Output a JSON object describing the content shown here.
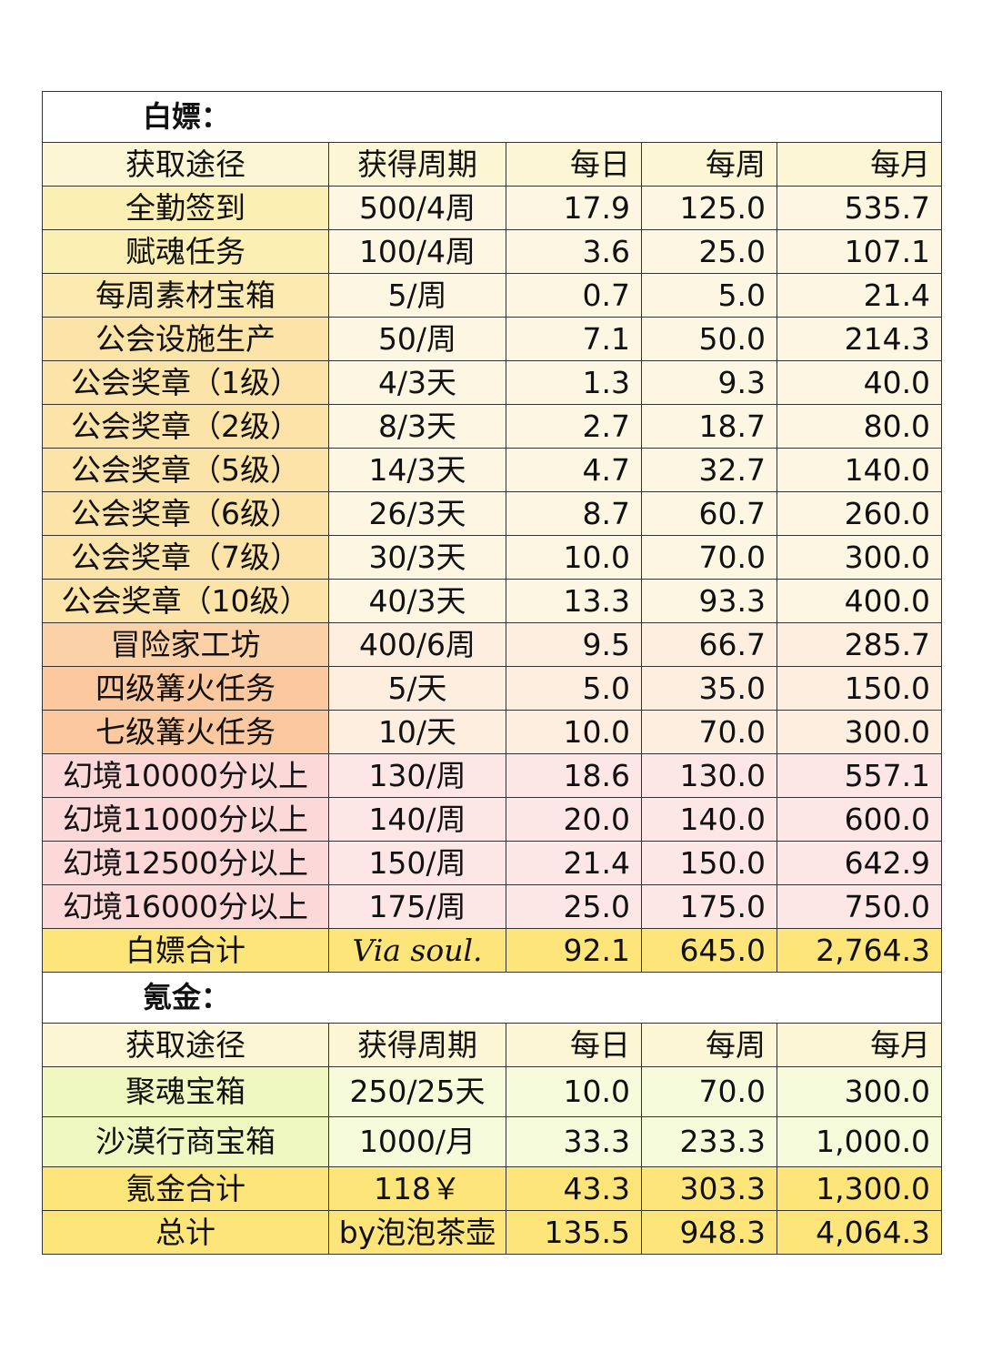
{
  "free": {
    "title": "白嫖：",
    "header": [
      "获取途径",
      "获得周期",
      "每日",
      "每周",
      "每月"
    ],
    "rows": [
      {
        "source": "全勤签到",
        "cycle": "500/4周",
        "daily": "17.9",
        "weekly": "125.0",
        "monthly": "535.7",
        "bg": "#fcefb4"
      },
      {
        "source": "赋魂任务",
        "cycle": "100/4周",
        "daily": "3.6",
        "weekly": "25.0",
        "monthly": "107.1",
        "bg": "#fcefb4"
      },
      {
        "source": "每周素材宝箱",
        "cycle": "5/周",
        "daily": "0.7",
        "weekly": "5.0",
        "monthly": "21.4",
        "bg": "#fceab0"
      },
      {
        "source": "公会设施生产",
        "cycle": "50/周",
        "daily": "7.1",
        "weekly": "50.0",
        "monthly": "214.3",
        "bg": "#fce4a8"
      },
      {
        "source": "公会奖章（1级）",
        "cycle": "4/3天",
        "daily": "1.3",
        "weekly": "9.3",
        "monthly": "40.0",
        "bg": "#fce4a8"
      },
      {
        "source": "公会奖章（2级）",
        "cycle": "8/3天",
        "daily": "2.7",
        "weekly": "18.7",
        "monthly": "80.0",
        "bg": "#fce4a8"
      },
      {
        "source": "公会奖章（5级）",
        "cycle": "14/3天",
        "daily": "4.7",
        "weekly": "32.7",
        "monthly": "140.0",
        "bg": "#fce4a8"
      },
      {
        "source": "公会奖章（6级）",
        "cycle": "26/3天",
        "daily": "8.7",
        "weekly": "60.7",
        "monthly": "260.0",
        "bg": "#fce4a8"
      },
      {
        "source": "公会奖章（7级）",
        "cycle": "30/3天",
        "daily": "10.0",
        "weekly": "70.0",
        "monthly": "300.0",
        "bg": "#fce4a8"
      },
      {
        "source": "公会奖章（10级）",
        "cycle": "40/3天",
        "daily": "13.3",
        "weekly": "93.3",
        "monthly": "400.0",
        "bg": "#fce4a8"
      },
      {
        "source": "冒险家工坊",
        "cycle": "400/6周",
        "daily": "9.5",
        "weekly": "66.7",
        "monthly": "285.7",
        "bg": "#fbd1a8"
      },
      {
        "source": "四级篝火任务",
        "cycle": "5/天",
        "daily": "5.0",
        "weekly": "35.0",
        "monthly": "150.0",
        "bg": "#fbc8a0"
      },
      {
        "source": "七级篝火任务",
        "cycle": "10/天",
        "daily": "10.0",
        "weekly": "70.0",
        "monthly": "300.0",
        "bg": "#fbc8a0"
      },
      {
        "source": "幻境10000分以上",
        "cycle": "130/周",
        "daily": "18.6",
        "weekly": "130.0",
        "monthly": "557.1",
        "bg": "#fcd8d8"
      },
      {
        "source": "幻境11000分以上",
        "cycle": "140/周",
        "daily": "20.0",
        "weekly": "140.0",
        "monthly": "600.0",
        "bg": "#fcd8d8"
      },
      {
        "source": "幻境12500分以上",
        "cycle": "150/周",
        "daily": "21.4",
        "weekly": "150.0",
        "monthly": "642.9",
        "bg": "#fcd8d8"
      },
      {
        "source": "幻境16000分以上",
        "cycle": "175/周",
        "daily": "25.0",
        "weekly": "175.0",
        "monthly": "750.0",
        "bg": "#fcd8d8"
      }
    ],
    "total": {
      "source": "白嫖合计",
      "cycle": "Via soul.",
      "daily": "92.1",
      "weekly": "645.0",
      "monthly": "2,764.3"
    }
  },
  "paid": {
    "title": "氪金：",
    "header": [
      "获取途径",
      "获得周期",
      "每日",
      "每周",
      "每月"
    ],
    "rows": [
      {
        "source": "聚魂宝箱",
        "cycle": "250/25天",
        "daily": "10.0",
        "weekly": "70.0",
        "monthly": "300.0",
        "bg": "#eef8c0"
      },
      {
        "source": "沙漠行商宝箱",
        "cycle": "1000/月",
        "daily": "33.3",
        "weekly": "233.3",
        "monthly": "1,000.0",
        "bg": "#eef8c0"
      }
    ],
    "total": {
      "source": "氪金合计",
      "cycle": "118￥",
      "daily": "43.3",
      "weekly": "303.3",
      "monthly": "1,300.0"
    },
    "grand_total": {
      "source": "总计",
      "cycle": "by泡泡茶壶",
      "daily": "135.5",
      "weekly": "948.3",
      "monthly": "4,064.3"
    }
  }
}
